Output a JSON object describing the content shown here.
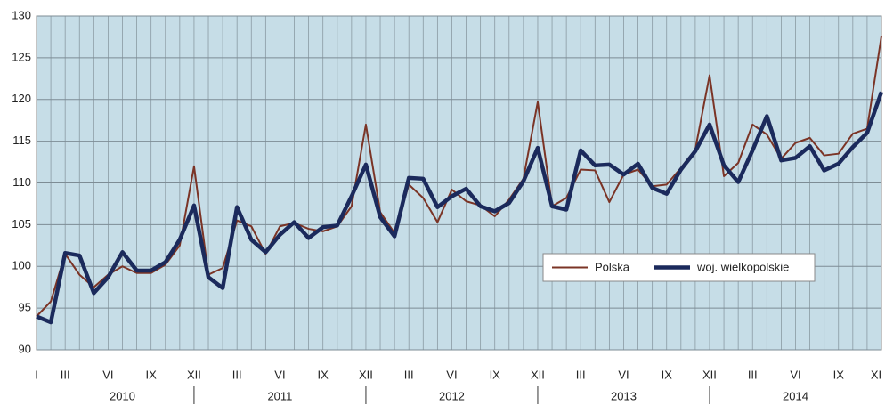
{
  "chart_data": {
    "type": "line",
    "categories": [
      "I",
      null,
      "III",
      null,
      null,
      "VI",
      null,
      null,
      "IX",
      null,
      null,
      "XII",
      null,
      null,
      "III",
      null,
      null,
      "VI",
      null,
      null,
      "IX",
      null,
      null,
      "XII",
      null,
      null,
      "III",
      null,
      null,
      "VI",
      null,
      null,
      "IX",
      null,
      null,
      "XII",
      null,
      null,
      "III",
      null,
      null,
      "VI",
      null,
      null,
      "IX",
      null,
      null,
      "XII",
      null,
      null,
      "III",
      null,
      null,
      "VI",
      null,
      null,
      "IX",
      null,
      null,
      "XI"
    ],
    "years": [
      "2010",
      "2011",
      "2012",
      "2013",
      "2014"
    ],
    "series": [
      {
        "name": "Polska",
        "color": "#7b3426",
        "width": 2,
        "values": [
          94.0,
          95.8,
          101.5,
          99.0,
          97.5,
          99.0,
          100.0,
          99.2,
          99.2,
          100.2,
          102.5,
          112.0,
          99.0,
          99.8,
          105.5,
          104.8,
          101.5,
          104.8,
          105.2,
          104.5,
          104.2,
          104.8,
          107.2,
          117.0,
          106.5,
          104.0,
          109.8,
          108.2,
          105.3,
          109.2,
          107.8,
          107.3,
          106.0,
          108.0,
          110.5,
          119.7,
          107.2,
          108.2,
          111.6,
          111.5,
          107.7,
          111.0,
          111.6,
          109.6,
          109.8,
          111.8,
          114.0,
          122.9,
          110.8,
          112.4,
          117.0,
          115.8,
          112.9,
          114.8,
          115.4,
          113.3,
          113.5,
          115.9,
          116.5,
          127.6
        ]
      },
      {
        "name": "woj. wielkopolskie",
        "color": "#1b2a5c",
        "width": 4.5,
        "values": [
          94.0,
          93.3,
          101.6,
          101.3,
          96.8,
          98.7,
          101.7,
          99.5,
          99.5,
          100.5,
          103.2,
          107.3,
          98.7,
          97.4,
          107.1,
          103.2,
          101.7,
          103.8,
          105.3,
          103.4,
          104.7,
          104.9,
          108.4,
          112.2,
          105.9,
          103.6,
          110.6,
          110.5,
          107.1,
          108.4,
          109.3,
          107.2,
          106.6,
          107.6,
          110.2,
          114.2,
          107.2,
          106.8,
          113.9,
          112.1,
          112.2,
          111.0,
          112.3,
          109.4,
          108.7,
          111.6,
          113.8,
          117.0,
          112.1,
          110.1,
          113.9,
          118.0,
          112.7,
          113.0,
          114.4,
          111.5,
          112.3,
          114.3,
          116.0,
          120.9
        ]
      }
    ],
    "ylim": [
      90,
      130
    ],
    "yticks": [
      90,
      95,
      100,
      105,
      110,
      115,
      120,
      125,
      130
    ],
    "grid": true
  }
}
